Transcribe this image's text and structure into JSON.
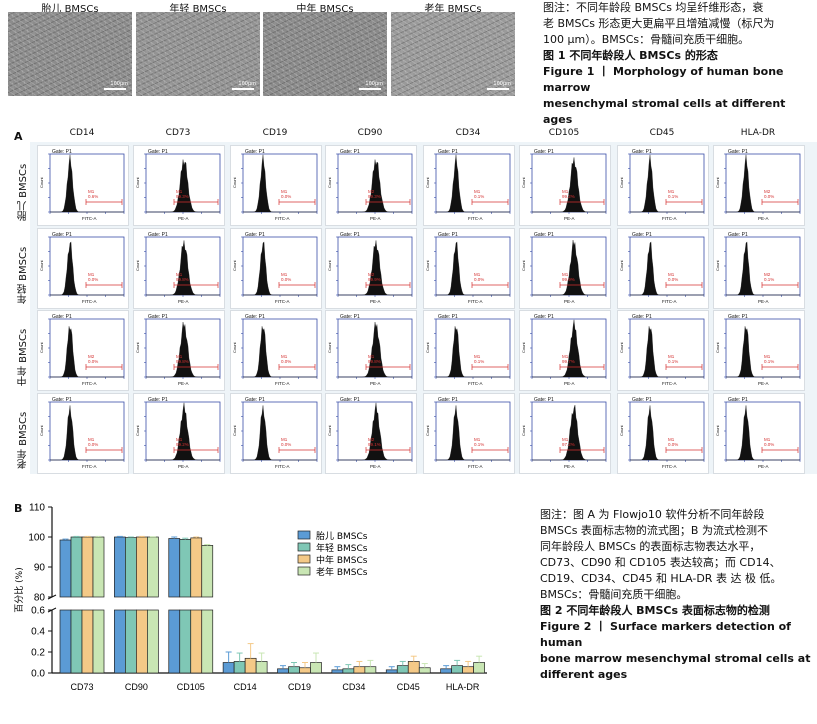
{
  "figure1": {
    "panels": [
      {
        "label": "胎儿 BMSCs",
        "scale": "100μm"
      },
      {
        "label": "年轻 BMSCs",
        "scale": "100μm"
      },
      {
        "label": "中年 BMSCs",
        "scale": "100μm"
      },
      {
        "label": "老年 BMSCs",
        "scale": "100μm"
      }
    ],
    "caption_cn_lines": [
      "图注：不同年龄段 BMSCs 均呈纤维形态，衰",
      "老 BMSCs 形态更大更扁平且增殖减慢（标尺为",
      "100 μm）。BMSCs：骨髓间充质干细胞。"
    ],
    "title_cn": "图 1  不同年龄段人 BMSCs 的形态",
    "title_en_lines": [
      "Figure 1 丨 Morphology of human bone marrow",
      "mesenchymal stromal cells at different ages"
    ]
  },
  "figure2": {
    "panel_a_label": "A",
    "markers": [
      "CD14",
      "CD73",
      "CD19",
      "CD90",
      "CD34",
      "CD105",
      "CD45",
      "HLA-DR"
    ],
    "rows": [
      "胎儿 BMSCs",
      "年轻 BMSCs",
      "中年 BMSCs",
      "老年 BMSCs"
    ],
    "gate_label": "Gate: P1",
    "count_label": "Count",
    "axis_labels": [
      "FITC-A",
      "PE-A",
      "FITC-A",
      "PE-A",
      "FITC-A",
      "PE-A",
      "FITC-A",
      "PE-A"
    ],
    "m_labels": [
      [
        "M1 0.6%",
        "M1 99.3%",
        "M1 0.0%",
        "M2 99.3%",
        "M1 0.1%",
        "M1 99.2%",
        "M1 0.1%",
        "M2 0.0%"
      ],
      [
        "M1 0.0%",
        "M1 99.8%",
        "M1 0.0%",
        "M2 99.9%",
        "M1 0.0%",
        "M1 99.9%",
        "M1 0.0%",
        "M2 0.1%"
      ],
      [
        "M2 0.0%",
        "M1 99.8%",
        "M1 0.0%",
        "M1 99.8%",
        "M1 0.1%",
        "M1 99.7%",
        "M1 0.1%",
        "M1 0.1%"
      ],
      [
        "M1 0.0%",
        "M1 99.2%",
        "M1 0.0%",
        "M2 99.1%",
        "M1 0.1%",
        "M1 97.2%",
        "M1 0.0%",
        "M1 0.0%"
      ]
    ],
    "panel_b_label": "B",
    "caption_cn_lines": [
      "图注：图 A 为 Flowjo10 软件分析不同年龄段",
      "BMSCs 表面标志物的流式图；B 为流式检测不",
      "同年龄段人 BMSCs 的表面标志物表达水平，",
      "CD73、CD90 和 CD105 表达较高；而 CD14、",
      "CD19、CD34、CD45 和 HLA-DR 表 达 极 低。",
      "BMSCs：骨髓间充质干细胞。"
    ],
    "title_cn": "图 2  不同年龄段人 BMSCs 表面标志物的检测",
    "title_en_lines": [
      "Figure 2 丨 Surface markers detection of human",
      "bone marrow mesenchymal stromal cells at",
      "different ages"
    ]
  },
  "chart_data": {
    "type": "bar",
    "ylabel": "百分比 (%)",
    "categories": [
      "CD73",
      "CD90",
      "CD105",
      "CD14",
      "CD19",
      "CD34",
      "CD45",
      "HLA-DR"
    ],
    "ylim_upper": [
      80,
      110
    ],
    "ylim_lower": [
      0,
      0.6
    ],
    "yticks_upper": [
      80,
      90,
      100,
      110
    ],
    "yticks_lower": [
      0.0,
      0.2,
      0.4,
      0.6
    ],
    "series": [
      {
        "name": "胎儿 BMSCs",
        "color": "#5b9bd5",
        "values": [
          99.0,
          100.0,
          99.5,
          0.1,
          0.04,
          0.03,
          0.03,
          0.04
        ],
        "errors": [
          0.3,
          0.2,
          0.5,
          0.1,
          0.03,
          0.03,
          0.03,
          0.03
        ]
      },
      {
        "name": "年轻 BMSCs",
        "color": "#7fc7b5",
        "values": [
          100.0,
          99.8,
          99.2,
          0.11,
          0.06,
          0.04,
          0.07,
          0.07
        ],
        "errors": [
          0.2,
          0.2,
          0.4,
          0.08,
          0.04,
          0.04,
          0.04,
          0.05
        ]
      },
      {
        "name": "中年 BMSCs",
        "color": "#f4c987",
        "values": [
          100.0,
          100.0,
          99.7,
          0.14,
          0.05,
          0.06,
          0.11,
          0.06
        ],
        "errors": [
          0.2,
          0.2,
          0.3,
          0.14,
          0.05,
          0.05,
          0.05,
          0.05
        ]
      },
      {
        "name": "老年 BMSCs",
        "color": "#c9e6b4",
        "values": [
          100.0,
          100.0,
          97.2,
          0.11,
          0.1,
          0.06,
          0.05,
          0.1
        ],
        "errors": [
          0.2,
          0.1,
          0.3,
          0.08,
          0.09,
          0.06,
          0.04,
          0.06
        ]
      }
    ],
    "legend_position": "upper-center",
    "grid": false
  }
}
